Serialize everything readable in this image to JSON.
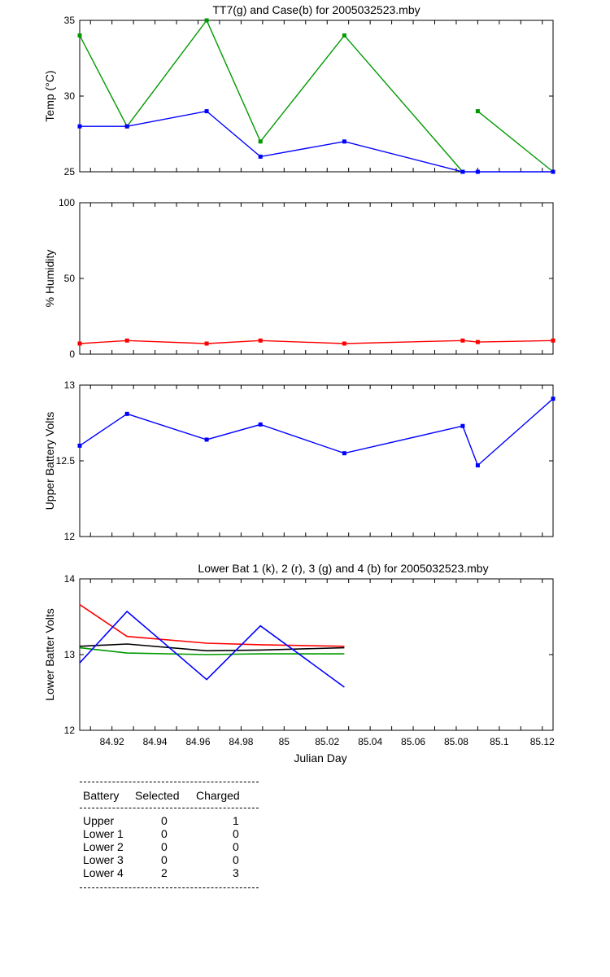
{
  "chart_data": [
    {
      "type": "line",
      "title": "TT7(g) and Case(b) for 2005032523.mby",
      "xlabel": "",
      "ylabel": "Temp  (°C)",
      "xlim": [
        84.905,
        85.125
      ],
      "ylim": [
        25,
        35
      ],
      "yticks": [
        25,
        30,
        35
      ],
      "x": [
        84.905,
        84.927,
        84.964,
        84.989,
        85.028,
        85.083,
        85.09,
        85.125
      ],
      "series": [
        {
          "name": "TT7(g)",
          "color": "#009900",
          "values": [
            34,
            28,
            35,
            27,
            34,
            25,
            null,
            29,
            25
          ],
          "x": [
            84.905,
            84.927,
            84.964,
            84.989,
            85.028,
            85.083,
            null,
            85.09,
            85.125
          ]
        },
        {
          "name": "Case(b)",
          "color": "#0000ff",
          "values": [
            28,
            28,
            29,
            26,
            27,
            25,
            25,
            25
          ],
          "x": [
            84.905,
            84.927,
            84.964,
            84.989,
            85.028,
            85.083,
            85.09,
            85.125
          ]
        }
      ],
      "markers": true,
      "grid": false
    },
    {
      "type": "line",
      "title": "",
      "xlabel": "",
      "ylabel": "% Humidity",
      "xlim": [
        84.905,
        85.125
      ],
      "ylim": [
        0,
        100
      ],
      "yticks": [
        0,
        50,
        100
      ],
      "series": [
        {
          "color": "#ff0000",
          "x": [
            84.905,
            84.927,
            84.964,
            84.989,
            85.028,
            85.083,
            85.09,
            85.125
          ],
          "values": [
            7,
            9,
            7,
            9,
            7,
            9,
            8,
            9
          ]
        }
      ],
      "markers": true,
      "grid": false
    },
    {
      "type": "line",
      "title": "",
      "xlabel": "",
      "ylabel": "Upper Battery Volts",
      "xlim": [
        84.905,
        85.125
      ],
      "ylim": [
        12,
        13
      ],
      "yticks": [
        12,
        12.5,
        13
      ],
      "series": [
        {
          "color": "#0000ff",
          "x": [
            84.905,
            84.927,
            84.964,
            84.989,
            85.028,
            85.083,
            85.09,
            85.125
          ],
          "values": [
            12.6,
            12.81,
            12.64,
            12.74,
            12.55,
            12.73,
            12.47,
            12.91
          ]
        }
      ],
      "markers": true,
      "grid": false
    },
    {
      "type": "line",
      "title": "Lower Bat 1 (k), 2 (r), 3 (g) and 4 (b) for 2005032523.mby",
      "xlabel": "Julian Day",
      "ylabel": "Lower Batter Volts",
      "xlim": [
        84.905,
        85.125
      ],
      "ylim": [
        12,
        14
      ],
      "yticks": [
        12,
        13,
        14
      ],
      "xticks": [
        84.92,
        84.94,
        84.96,
        84.98,
        85,
        85.02,
        85.04,
        85.06,
        85.08,
        85.1,
        85.12
      ],
      "xticklabels": [
        "84.92",
        "84.94",
        "84.96",
        "84.98",
        "85",
        "85.02",
        "85.04",
        "85.06",
        "85.08",
        "85.1",
        "85.12"
      ],
      "series": [
        {
          "name": "1 (k)",
          "color": "#000000",
          "x": [
            84.905,
            84.927,
            84.964,
            84.989,
            85.028
          ],
          "values": [
            13.11,
            13.14,
            13.05,
            13.06,
            13.09
          ]
        },
        {
          "name": "2 (r)",
          "color": "#ff0000",
          "x": [
            84.905,
            84.927,
            84.964,
            84.989,
            85.028
          ],
          "values": [
            13.66,
            13.24,
            13.15,
            13.13,
            13.11
          ]
        },
        {
          "name": "3 (g)",
          "color": "#009900",
          "x": [
            84.905,
            84.927,
            84.964,
            84.989,
            85.028
          ],
          "values": [
            13.09,
            13.02,
            13.0,
            13.01,
            13.01
          ]
        },
        {
          "name": "4 (b)",
          "color": "#0000ff",
          "x": [
            84.905,
            84.927,
            84.964,
            84.989,
            85.028
          ],
          "values": [
            12.89,
            13.57,
            12.67,
            13.38,
            12.57
          ]
        }
      ],
      "markers": false,
      "grid": false
    }
  ],
  "battery_table": {
    "headers": [
      "Battery",
      "Selected",
      "Charged"
    ],
    "rows": [
      [
        "Upper",
        "0",
        "1"
      ],
      [
        "Lower 1",
        "0",
        "0"
      ],
      [
        "Lower 2",
        "0",
        "0"
      ],
      [
        "Lower 3",
        "0",
        "0"
      ],
      [
        "Lower 4",
        "2",
        "3"
      ]
    ]
  }
}
